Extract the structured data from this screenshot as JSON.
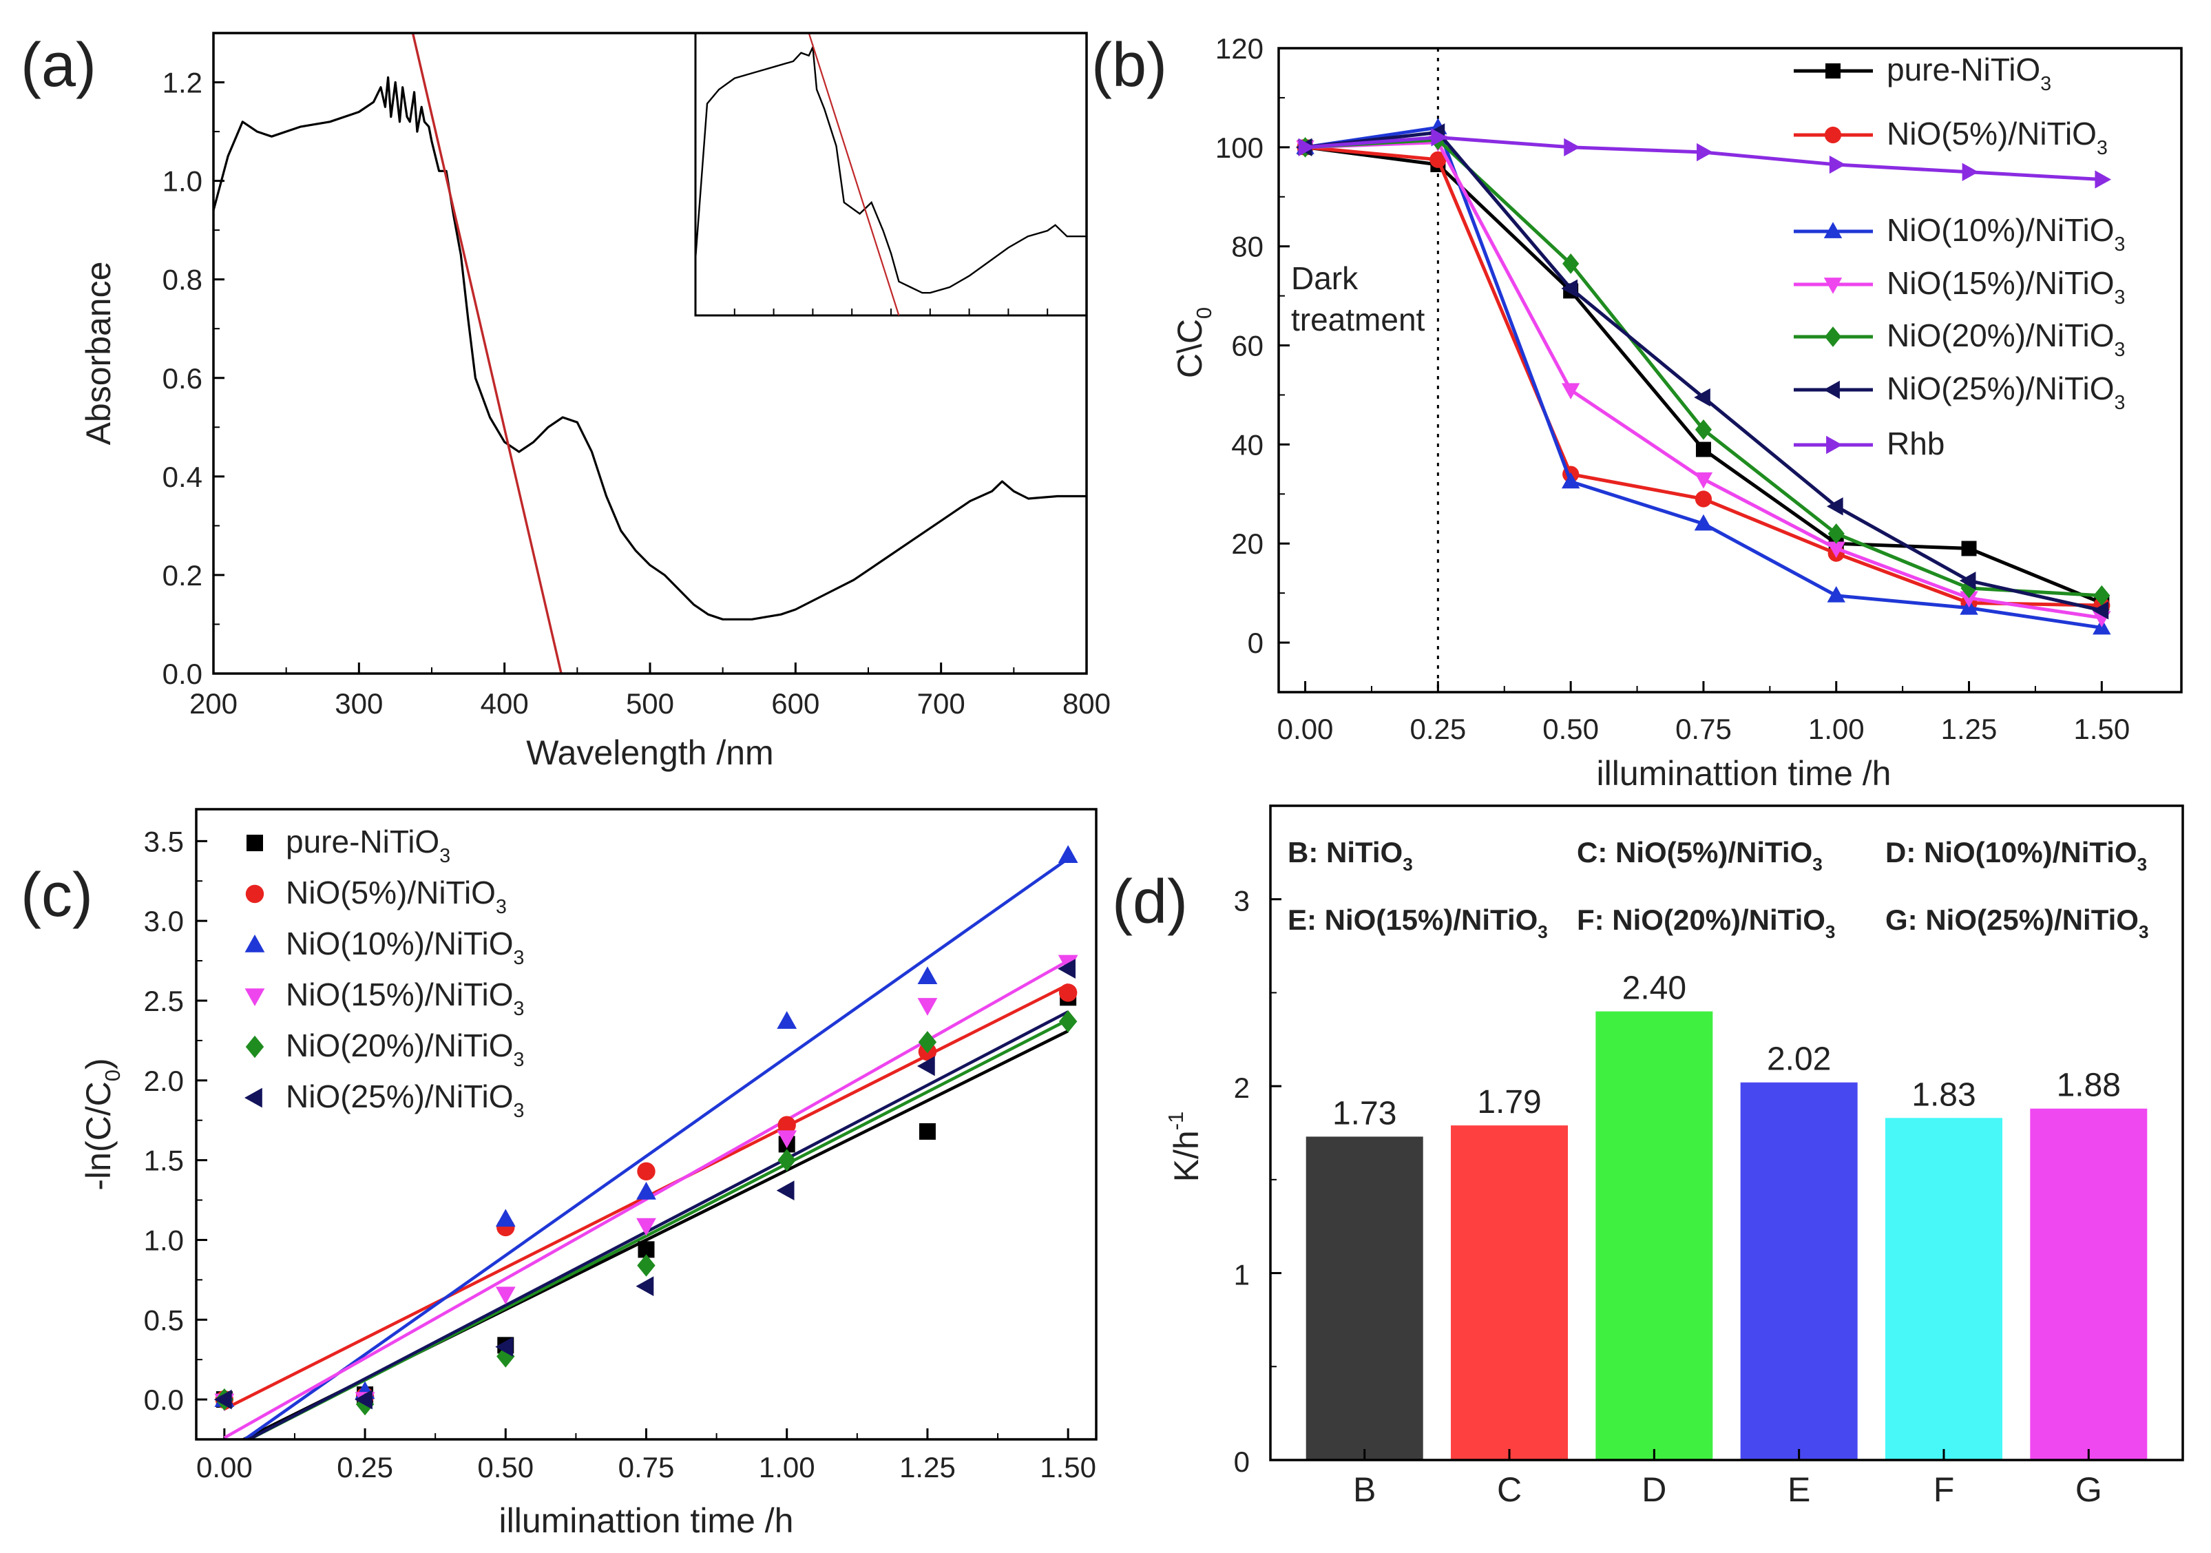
{
  "panels": {
    "a": {
      "label": "(a)",
      "chart_data": {
        "type": "line",
        "xlabel": "Wavelength /nm",
        "ylabel": "Absorbance",
        "xlim": [
          200,
          800
        ],
        "ylim": [
          0,
          1.3
        ],
        "xticks": [
          "200",
          "300",
          "400",
          "500",
          "600",
          "700",
          "800"
        ],
        "yticks": [
          "0.0",
          "0.2",
          "0.4",
          "0.6",
          "0.8",
          "1.0",
          "1.2"
        ],
        "series": [
          {
            "name": "absorbance spectrum",
            "color": "#000000",
            "x": [
              200,
              210,
              220,
              230,
              240,
              260,
              280,
              300,
              310,
              315,
              318,
              320,
              322,
              325,
              328,
              330,
              333,
              335,
              338,
              340,
              343,
              345,
              348,
              350,
              355,
              360,
              365,
              370,
              375,
              380,
              390,
              400,
              410,
              420,
              430,
              440,
              450,
              460,
              470,
              480,
              490,
              500,
              510,
              520,
              530,
              540,
              550,
              560,
              570,
              580,
              590,
              600,
              620,
              640,
              660,
              680,
              700,
              720,
              735,
              742,
              750,
              760,
              780,
              800
            ],
            "y": [
              0.94,
              1.05,
              1.12,
              1.1,
              1.09,
              1.11,
              1.12,
              1.14,
              1.16,
              1.19,
              1.15,
              1.21,
              1.13,
              1.2,
              1.12,
              1.19,
              1.13,
              1.12,
              1.18,
              1.1,
              1.15,
              1.12,
              1.11,
              1.08,
              1.02,
              1.02,
              0.93,
              0.85,
              0.72,
              0.6,
              0.52,
              0.47,
              0.45,
              0.47,
              0.5,
              0.52,
              0.51,
              0.45,
              0.36,
              0.29,
              0.25,
              0.22,
              0.2,
              0.17,
              0.14,
              0.12,
              0.11,
              0.11,
              0.11,
              0.115,
              0.12,
              0.13,
              0.16,
              0.19,
              0.23,
              0.27,
              0.31,
              0.35,
              0.37,
              0.39,
              0.37,
              0.355,
              0.36,
              0.36
            ]
          },
          {
            "name": "tangent",
            "color": "#c0282a",
            "x": [
              337,
              439
            ],
            "y": [
              1.3,
              0
            ]
          }
        ],
        "inset": {
          "series": [
            {
              "name": "inset spectrum",
              "color": "#000000",
              "x": [
                0,
                0.03,
                0.06,
                0.1,
                0.15,
                0.2,
                0.25,
                0.27,
                0.29,
                0.3,
                0.31,
                0.33,
                0.36,
                0.38,
                0.42,
                0.45,
                0.48,
                0.5,
                0.52,
                0.55,
                0.58,
                0.6,
                0.65,
                0.7,
                0.75,
                0.8,
                0.85,
                0.9,
                0.92,
                0.95,
                1.0
              ],
              "y": [
                0.2,
                0.75,
                0.8,
                0.84,
                0.86,
                0.88,
                0.9,
                0.93,
                0.92,
                0.95,
                0.8,
                0.73,
                0.6,
                0.4,
                0.36,
                0.4,
                0.3,
                0.22,
                0.12,
                0.1,
                0.08,
                0.08,
                0.1,
                0.14,
                0.19,
                0.24,
                0.28,
                0.3,
                0.32,
                0.28,
                0.28
              ]
            },
            {
              "name": "inset tangent",
              "color": "#c0282a",
              "x": [
                0.29,
                0.52
              ],
              "y": [
                1.0,
                0.0
              ]
            }
          ]
        }
      }
    },
    "b": {
      "label": "(b)",
      "chart_data": {
        "type": "line",
        "xlabel": "illuminattion time /h",
        "ylabel": "C\\C",
        "ylabel_sub": "0",
        "xlim": [
          -0.05,
          1.65
        ],
        "ylim": [
          -10,
          120
        ],
        "xticks": [
          "0.00",
          "0.25",
          "0.50",
          "0.75",
          "1.00",
          "1.25",
          "1.50"
        ],
        "yticks": [
          "0",
          "20",
          "40",
          "60",
          "80",
          "100",
          "120"
        ],
        "x": [
          0,
          0.25,
          0.5,
          0.75,
          1.0,
          1.25,
          1.5
        ],
        "annotation_line1": "Dark",
        "annotation_line2": "treatment",
        "series": [
          {
            "name": "pure-NiTiO",
            "sub": "3",
            "marker": "square",
            "color": "#000000",
            "values": [
              100,
              96.5,
              71,
              39,
              20,
              19,
              8
            ]
          },
          {
            "name": "NiO(5%)/NiTiO",
            "sub": "3",
            "marker": "circle",
            "color": "#e8231f",
            "values": [
              100,
              97.5,
              34,
              29,
              18,
              8,
              7.5
            ]
          },
          {
            "name": "NiO(10%)/NiTiO",
            "sub": "3",
            "marker": "triangle-up",
            "color": "#1f37d6",
            "values": [
              100,
              104,
              32.5,
              24,
              9.5,
              7,
              3
            ]
          },
          {
            "name": "NiO(15%)/NiTiO",
            "sub": "3",
            "marker": "triangle-down",
            "color": "#ee45ee",
            "values": [
              100,
              101,
              51,
              33,
              19,
              9,
              5
            ]
          },
          {
            "name": "NiO(20%)/NiTiO",
            "sub": "3",
            "marker": "diamond",
            "color": "#1f8c1f",
            "values": [
              100,
              101.5,
              76.5,
              43,
              22,
              11,
              9.5
            ]
          },
          {
            "name": "NiO(25%)/NiTiO",
            "sub": "3",
            "marker": "triangle-left",
            "color": "#13135c",
            "values": [
              100,
              103,
              71.5,
              49.5,
              27.5,
              12.5,
              6.5
            ]
          },
          {
            "name": "Rhb",
            "sub": "",
            "marker": "triangle-right",
            "color": "#8a2be2",
            "values": [
              100,
              102,
              100,
              99,
              96.5,
              95,
              93.5
            ]
          }
        ]
      }
    },
    "c": {
      "label": "(c)",
      "chart_data": {
        "type": "scatter",
        "xlabel": "illuminattion time /h",
        "ylabel": "-ln(C/C",
        "ylabel_sub": "0",
        "ylabel_end": ")",
        "xlim": [
          -0.05,
          1.55
        ],
        "ylim": [
          -0.25,
          3.7
        ],
        "xticks": [
          "0.00",
          "0.25",
          "0.50",
          "0.75",
          "1.00",
          "1.25",
          "1.50"
        ],
        "yticks": [
          "0.0",
          "0.5",
          "1.0",
          "1.5",
          "2.0",
          "2.5",
          "3.0",
          "3.5"
        ],
        "x": [
          0,
          0.25,
          0.5,
          0.75,
          1.0,
          1.25,
          1.5
        ],
        "series": [
          {
            "name": "pure-NiTiO",
            "sub": "3",
            "marker": "square",
            "color": "#000000",
            "values": [
              0,
              0.03,
              0.34,
              0.94,
              1.6,
              1.68,
              2.52
            ],
            "fit": [
              -0.31,
              2.31
            ]
          },
          {
            "name": "NiO(5%)/NiTiO",
            "sub": "3",
            "marker": "circle",
            "color": "#e8231f",
            "values": [
              0,
              0.02,
              1.08,
              1.43,
              1.72,
              2.18,
              2.55
            ],
            "fit": [
              -0.06,
              2.6
            ]
          },
          {
            "name": "NiO(10%)/NiTiO",
            "sub": "3",
            "marker": "triangle-up",
            "color": "#1f37d6",
            "values": [
              0,
              0.05,
              1.13,
              1.3,
              2.37,
              2.65,
              3.41
            ],
            "fit": [
              -0.34,
              3.39
            ]
          },
          {
            "name": "NiO(15%)/NiTiO",
            "sub": "3",
            "marker": "triangle-down",
            "color": "#ee45ee",
            "values": [
              -0.01,
              0.0,
              0.66,
              1.09,
              1.64,
              2.47,
              2.74
            ],
            "fit": [
              -0.24,
              2.75
            ]
          },
          {
            "name": "NiO(20%)/NiTiO",
            "sub": "3",
            "marker": "diamond",
            "color": "#1f8c1f",
            "values": [
              0,
              -0.03,
              0.27,
              0.84,
              1.5,
              2.24,
              2.37
            ],
            "fit": [
              -0.33,
              2.38
            ]
          },
          {
            "name": "NiO(25%)/NiTiO",
            "sub": "3",
            "marker": "triangle-left",
            "color": "#13135c",
            "values": [
              0,
              0.0,
              0.33,
              0.71,
              1.31,
              2.09,
              2.7
            ],
            "fit": [
              -0.33,
              2.43
            ]
          }
        ]
      }
    },
    "d": {
      "label": "(d)",
      "chart_data": {
        "type": "bar",
        "xlabel": "",
        "ylabel": "K/h",
        "ylabel_sup": "-1",
        "ylim": [
          0,
          3.5
        ],
        "yticks": [
          "0",
          "1",
          "2",
          "3"
        ],
        "categories": [
          "B",
          "C",
          "D",
          "E",
          "F",
          "G"
        ],
        "values": [
          1.73,
          1.79,
          2.4,
          2.02,
          1.83,
          1.88
        ],
        "value_labels": [
          "1.73",
          "1.79",
          "2.40",
          "2.02",
          "1.83",
          "1.88"
        ],
        "colors": [
          "#3b3b3b",
          "#ff4040",
          "#40f040",
          "#4848f0",
          "#48f8f8",
          "#f048f0"
        ],
        "legend": [
          {
            "text": "B: NiTiO",
            "sub": "3"
          },
          {
            "text": "C: NiO(5%)/NiTiO",
            "sub": "3"
          },
          {
            "text": "D: NiO(10%)/NiTiO",
            "sub": "3"
          },
          {
            "text": "E: NiO(15%)/NiTiO",
            "sub": "3"
          },
          {
            "text": "F: NiO(20%)/NiTiO",
            "sub": "3"
          },
          {
            "text": "G: NiO(25%)/NiTiO",
            "sub": "3"
          }
        ]
      }
    }
  }
}
